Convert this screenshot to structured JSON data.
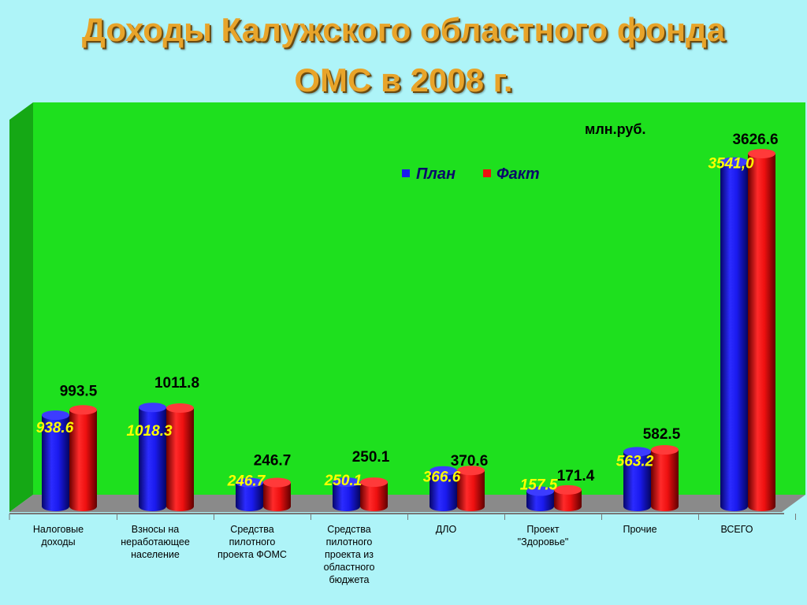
{
  "title": {
    "line1": "Доходы Калужского областного фонда",
    "line2": "ОМС в 2008 г."
  },
  "colors": {
    "background": "#aef4f8",
    "plot_area": "#1ee01e",
    "plan": "#1a1aee",
    "fact": "#ee1010",
    "title": "#e8a42a",
    "plan_label": "#ffff00"
  },
  "chart_data": {
    "type": "bar",
    "style": "3d-cylinder",
    "unit": "млн.руб.",
    "categories": [
      [
        "Налоговые",
        "доходы"
      ],
      [
        "Взносы на",
        "неработающее",
        "население"
      ],
      [
        "Средства",
        "пилотного",
        "проекта ФОМС"
      ],
      [
        "Средства",
        "пилотного",
        "проекта из",
        "областного",
        "бюджета"
      ],
      [
        "ДЛО"
      ],
      [
        "Проект",
        "\"Здоровье\""
      ],
      [
        "Прочие"
      ],
      [
        "ВСЕГО"
      ]
    ],
    "series": [
      {
        "name": "План",
        "values": [
          938.6,
          1018.3,
          246.7,
          250.1,
          366.6,
          157.5,
          563.2,
          3541.0
        ],
        "labels": [
          "938.6",
          "1018.3",
          "246.7",
          "250.1",
          "366.6",
          "157.5",
          "563.2",
          "3541,0"
        ]
      },
      {
        "name": "Факт",
        "values": [
          993.5,
          1011.8,
          246.7,
          250.1,
          370.6,
          171.4,
          582.5,
          3626.6
        ],
        "labels": [
          "993.5",
          "1011.8",
          "246.7",
          "250.1",
          "370.6",
          "171.4",
          "582.5",
          "3626.6"
        ]
      }
    ],
    "ylim": [
      0,
      3800
    ],
    "legend_position": "top-right",
    "grid": false
  }
}
